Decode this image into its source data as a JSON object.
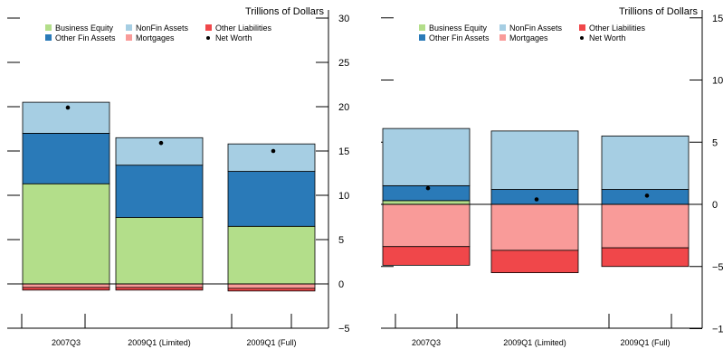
{
  "colors": {
    "business_equity": "#b3de8a",
    "nonfin_assets": "#a6cee3",
    "other_fin_assets": "#2a7ab8",
    "mortgages": "#f99b99",
    "other_liabilities": "#f0474a",
    "net_worth": "#000000"
  },
  "chart_data": [
    {
      "type": "bar",
      "stacked": true,
      "unit_label": "Trillions of Dollars",
      "categories": [
        "2007Q3",
        "2009Q1 (Limited)",
        "2009Q1 (Full)"
      ],
      "ylim": [
        -5,
        30
      ],
      "yticks": [
        -5,
        0,
        5,
        10,
        15,
        20,
        25,
        30
      ],
      "grid": false,
      "legend_position": "top",
      "series": [
        {
          "name": "Business Equity",
          "key": "business_equity",
          "values": [
            11.3,
            7.5,
            6.5
          ]
        },
        {
          "name": "Other Fin Assets",
          "key": "other_fin_assets",
          "values": [
            5.7,
            5.9,
            6.2
          ]
        },
        {
          "name": "NonFin Assets",
          "key": "nonfin_assets",
          "values": [
            3.5,
            3.1,
            3.1
          ]
        },
        {
          "name": "Mortgages",
          "key": "mortgages",
          "values": [
            -0.4,
            -0.4,
            -0.5
          ]
        },
        {
          "name": "Other Liabilities",
          "key": "other_liabilities",
          "values": [
            -0.3,
            -0.3,
            -0.3
          ]
        }
      ],
      "net_worth": {
        "name": "Net Worth",
        "values": [
          19.9,
          15.9,
          15.0
        ]
      }
    },
    {
      "type": "bar",
      "stacked": true,
      "unit_label": "Trillions of Dollars",
      "categories": [
        "2007Q3",
        "2009Q1 (Limited)",
        "2009Q1 (Full)"
      ],
      "ylim": [
        -10,
        15
      ],
      "yticks": [
        -10,
        -5,
        0,
        5,
        10,
        15
      ],
      "grid": false,
      "legend_position": "top",
      "series": [
        {
          "name": "Business Equity",
          "key": "business_equity",
          "values": [
            0.3,
            0,
            0
          ]
        },
        {
          "name": "Other Fin Assets",
          "key": "other_fin_assets",
          "values": [
            1.2,
            1.2,
            1.2
          ]
        },
        {
          "name": "NonFin Assets",
          "key": "nonfin_assets",
          "values": [
            4.6,
            4.7,
            4.3
          ]
        },
        {
          "name": "Mortgages",
          "key": "mortgages",
          "values": [
            -3.4,
            -3.7,
            -3.5
          ]
        },
        {
          "name": "Other Liabilities",
          "key": "other_liabilities",
          "values": [
            -1.5,
            -1.8,
            -1.5
          ]
        }
      ],
      "net_worth": {
        "name": "Net Worth",
        "values": [
          1.3,
          0.4,
          0.7
        ]
      }
    }
  ],
  "legend": {
    "row1": [
      {
        "label": "Business Equity",
        "key": "business_equity",
        "marker": "square"
      },
      {
        "label": "NonFin Assets",
        "key": "nonfin_assets",
        "marker": "square"
      },
      {
        "label": "Other Liabilities",
        "key": "other_liabilities",
        "marker": "square"
      }
    ],
    "row2": [
      {
        "label": "Other Fin Assets",
        "key": "other_fin_assets",
        "marker": "square"
      },
      {
        "label": "Mortgages",
        "key": "mortgages",
        "marker": "square"
      },
      {
        "label": "Net Worth",
        "key": "net_worth",
        "marker": "dot"
      }
    ]
  }
}
